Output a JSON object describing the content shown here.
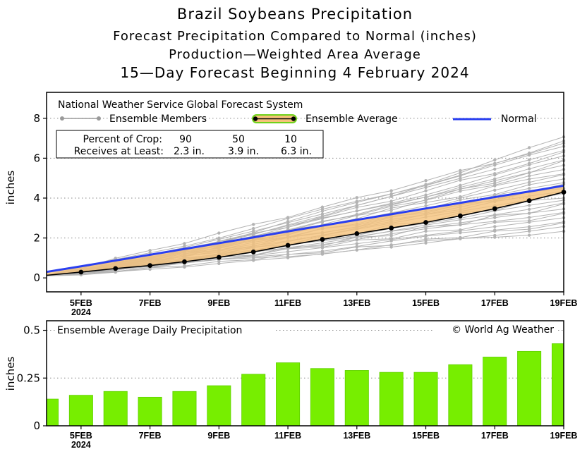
{
  "titles": {
    "line1": "Brazil Soybeans Precipitation",
    "line2": "Forecast Precipitation Compared to Normal (inches)",
    "line3": "Production—Weighted Area Average",
    "line4": "15—Day Forecast Beginning 4 February 2024"
  },
  "legend": {
    "source": "National Weather Service Global Forecast System",
    "members_label": "Ensemble Members",
    "average_label": "Ensemble Average",
    "normal_label": "Normal"
  },
  "crop_table": {
    "row1_label": "Percent of Crop:",
    "row2_label": "Receives at Least:",
    "percents": [
      "90",
      "50",
      "10"
    ],
    "amounts": [
      "2.3 in.",
      "3.9 in.",
      "6.3 in."
    ]
  },
  "footer": {
    "daily_title": "Ensemble Average Daily Precipitation",
    "copyright": "© World Ag Weather"
  },
  "colors": {
    "normal": "#2a3ff0",
    "average_line": "#000000",
    "band_fill": "#f5c27a",
    "band_border": "#6fd21a",
    "members": "#b3b3b3",
    "bars": "#77ee00",
    "bars_stroke": "#5fd000"
  },
  "chart_data": [
    {
      "type": "line",
      "title": "Forecast Precipitation Compared to Normal (inches)",
      "xlabel": "",
      "ylabel": "inches",
      "x": [
        4,
        5,
        6,
        7,
        8,
        9,
        10,
        11,
        12,
        13,
        14,
        15,
        16,
        17,
        18,
        19
      ],
      "xlim": [
        4,
        19
      ],
      "ylim": [
        -0.7,
        9.3
      ],
      "yticks": [
        0,
        2,
        4,
        6,
        8
      ],
      "xticks": [
        {
          "x": 5,
          "label": "5FEB",
          "sub": "2024"
        },
        {
          "x": 7,
          "label": "7FEB",
          "sub": ""
        },
        {
          "x": 9,
          "label": "9FEB",
          "sub": ""
        },
        {
          "x": 11,
          "label": "11FEB",
          "sub": ""
        },
        {
          "x": 13,
          "label": "13FEB",
          "sub": ""
        },
        {
          "x": 15,
          "label": "15FEB",
          "sub": ""
        },
        {
          "x": 17,
          "label": "17FEB",
          "sub": ""
        },
        {
          "x": 19,
          "label": "19FEB",
          "sub": ""
        }
      ],
      "series": [
        {
          "name": "Normal",
          "values": [
            0.3,
            0.58,
            0.87,
            1.16,
            1.45,
            1.74,
            2.03,
            2.33,
            2.62,
            2.91,
            3.19,
            3.48,
            3.76,
            4.05,
            4.33,
            4.62
          ]
        },
        {
          "name": "Ensemble Average",
          "values": [
            0.13,
            0.29,
            0.47,
            0.62,
            0.81,
            1.03,
            1.3,
            1.63,
            1.93,
            2.22,
            2.5,
            2.78,
            3.11,
            3.47,
            3.87,
            4.3
          ]
        }
      ],
      "ensemble_members": {
        "start": [
          0.1,
          0.12,
          0.14,
          0.15,
          0.13
        ],
        "min_end": 2.4,
        "max_end": 7.0,
        "count": 31
      }
    },
    {
      "type": "bar",
      "title": "Ensemble Average Daily Precipitation",
      "ylabel": "inches",
      "ylim": [
        0,
        0.55
      ],
      "yticks": [
        0,
        0.25,
        0.5
      ],
      "ytick_labels": [
        "0",
        "0.25",
        "0.5"
      ],
      "x": [
        4,
        5,
        6,
        7,
        8,
        9,
        10,
        11,
        12,
        13,
        14,
        15,
        16,
        17,
        18,
        19
      ],
      "values": [
        0.14,
        0.16,
        0.18,
        0.15,
        0.18,
        0.21,
        0.27,
        0.33,
        0.3,
        0.29,
        0.28,
        0.28,
        0.32,
        0.36,
        0.39,
        0.43
      ]
    }
  ]
}
